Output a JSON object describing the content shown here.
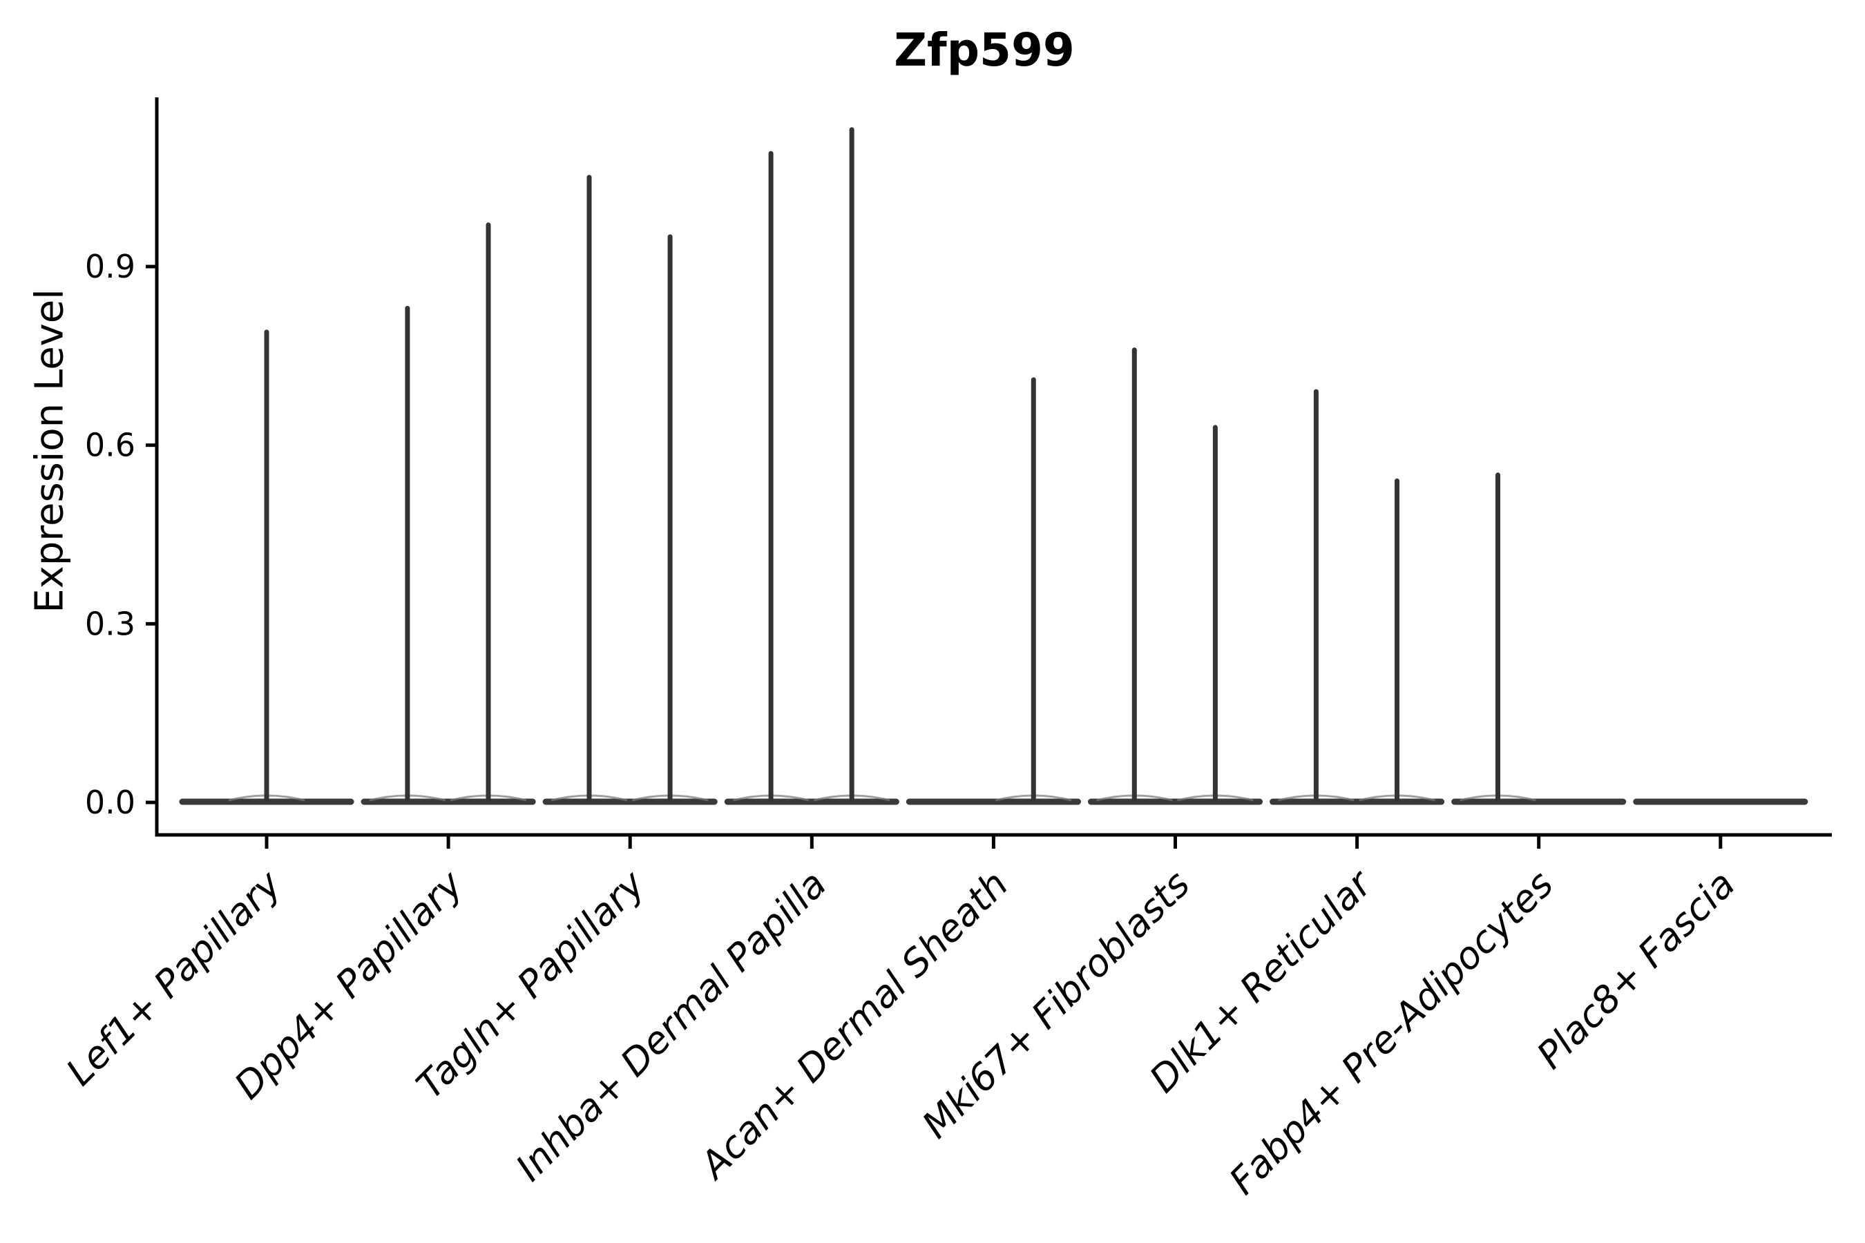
{
  "title": "Zfp599",
  "axes": {
    "ylabel": "Expression Level",
    "ytick_labels": [
      "0.0",
      "0.3",
      "0.6",
      "0.9"
    ]
  },
  "chart_data": {
    "type": "violin",
    "title": "Zfp599",
    "xlabel": "",
    "ylabel": "Expression Level",
    "yticks": [
      0.0,
      0.3,
      0.6,
      0.9
    ],
    "ytick_labels": [
      "0.0",
      "0.3",
      "0.6",
      "0.9"
    ],
    "ylim": [
      -0.055,
      1.184
    ],
    "grid": false,
    "legend_position": "none",
    "categories": [
      "Lef1+ Papillary",
      "Dpp4+ Papillary",
      "Tagln+ Papillary",
      "Inhba+ Dermal Papilla",
      "Acan+ Dermal Sheath",
      "Mki67+ Fibroblasts",
      "Dlk1+ Reticular",
      "Fabp4+ Pre-Adipocytes",
      "Plac8+ Fascia"
    ],
    "description": "Violin plot of Zfp599 expression per fibroblast cluster: almost all density sits at 0 (wide flat base per category) with thin spikes reaching each violin's maximum expression value.",
    "base_halfwidth_frac": 0.464,
    "violins": [
      {
        "category": "Lef1+ Papillary",
        "spikes": [
          {
            "offset_frac": 0.0,
            "max": 0.79
          }
        ]
      },
      {
        "category": "Dpp4+ Papillary",
        "spikes": [
          {
            "offset_frac": -0.225,
            "max": 0.83
          },
          {
            "offset_frac": 0.22,
            "max": 0.97
          }
        ]
      },
      {
        "category": "Tagln+ Papillary",
        "spikes": [
          {
            "offset_frac": -0.225,
            "max": 1.05
          },
          {
            "offset_frac": 0.22,
            "max": 0.95
          }
        ]
      },
      {
        "category": "Inhba+ Dermal Papilla",
        "spikes": [
          {
            "offset_frac": -0.225,
            "max": 1.09
          },
          {
            "offset_frac": 0.22,
            "max": 1.13
          }
        ]
      },
      {
        "category": "Acan+ Dermal Sheath",
        "spikes": [
          {
            "offset_frac": 0.22,
            "max": 0.71
          }
        ]
      },
      {
        "category": "Mki67+ Fibroblasts",
        "spikes": [
          {
            "offset_frac": -0.225,
            "max": 0.76
          },
          {
            "offset_frac": 0.22,
            "max": 0.63
          }
        ]
      },
      {
        "category": "Dlk1+ Reticular",
        "spikes": [
          {
            "offset_frac": -0.225,
            "max": 0.69
          },
          {
            "offset_frac": 0.22,
            "max": 0.54
          }
        ]
      },
      {
        "category": "Fabp4+ Pre-Adipocytes",
        "spikes": [
          {
            "offset_frac": -0.225,
            "max": 0.55
          }
        ]
      },
      {
        "category": "Plac8+ Fascia",
        "spikes": []
      }
    ],
    "colors": {
      "violin": "#333333",
      "violin_body": "#3a3a3a",
      "base_bump": "#777777",
      "axis": "#000000",
      "text": "#000000",
      "background": "#ffffff"
    }
  }
}
